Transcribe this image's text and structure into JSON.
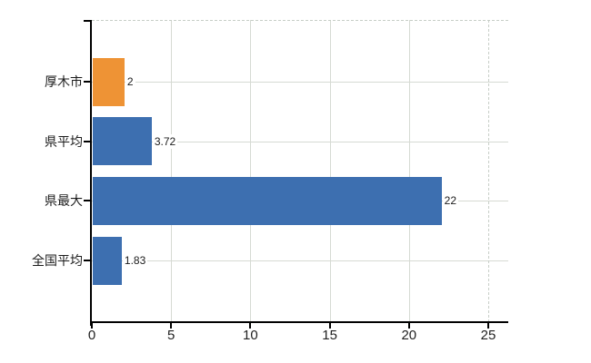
{
  "chart_data": {
    "type": "bar",
    "orientation": "horizontal",
    "title": "",
    "categories": [
      "厚木市",
      "県平均",
      "県最大",
      "全国平均"
    ],
    "series": [
      {
        "name": "series-1",
        "values": [
          2,
          3.72,
          22,
          1.83
        ]
      }
    ],
    "value_labels": [
      "2",
      "3.72",
      "22",
      "1.83"
    ],
    "bar_colors": [
      "#ee9335",
      "#3d6fb0",
      "#3d6fb0",
      "#3d6fb0"
    ],
    "xlabel": "",
    "ylabel": "",
    "xlim": [
      0,
      26.3
    ],
    "x_ticks": [
      0,
      5,
      10,
      15,
      20,
      25
    ],
    "x_tick_labels": [
      "0",
      "5",
      "10",
      "15",
      "20",
      "25"
    ],
    "solid_gridlines_x": [
      5,
      10,
      15,
      20
    ],
    "dashed_gridlines_x": [
      25
    ],
    "top_border_dashed": true,
    "grid": "both",
    "legend": false
  },
  "colors": {
    "background": "#ffffff",
    "axis": "#000000",
    "grid_solid": "#d6dad3",
    "grid_dashed": "#c7cec7",
    "accent_orange": "#ee9335",
    "accent_blue": "#3d6fb0",
    "text": "#1c1c1c"
  }
}
